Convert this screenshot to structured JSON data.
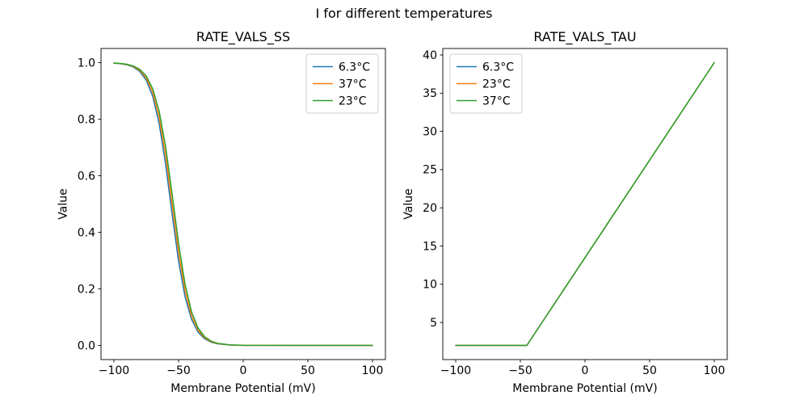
{
  "figure": {
    "title": "I for different temperatures",
    "background": "#ffffff"
  },
  "palette": {
    "C0": "#1f77b4",
    "C1": "#ff7f0e",
    "C2": "#2ca02c"
  },
  "chart_data": [
    {
      "type": "line",
      "title": "RATE_VALS_SS",
      "xlabel": "Membrane Potential (mV)",
      "ylabel": "Value",
      "xlim": [
        -110,
        110
      ],
      "ylim": [
        -0.05,
        1.05
      ],
      "grid": false,
      "legend_position": "top-right",
      "xticks": {
        "values": [
          -100,
          -50,
          0,
          50,
          100
        ],
        "labels": [
          "−100",
          "−50",
          "0",
          "50",
          "100"
        ]
      },
      "yticks": {
        "values": [
          0.0,
          0.2,
          0.4,
          0.6,
          0.8,
          1.0
        ],
        "labels": [
          "0.0",
          "0.2",
          "0.4",
          "0.6",
          "0.8",
          "1.0"
        ]
      },
      "x": [
        -100,
        -95,
        -90,
        -85,
        -80,
        -75,
        -70,
        -65,
        -60,
        -55,
        -50,
        -45,
        -40,
        -35,
        -30,
        -25,
        -20,
        -10,
        0,
        50,
        100
      ],
      "series": [
        {
          "name": "6.3°C",
          "color": "#1f77b4",
          "values": [
            0.9981,
            0.9962,
            0.9923,
            0.9844,
            0.9686,
            0.9379,
            0.8808,
            0.7834,
            0.6391,
            0.4643,
            0.2979,
            0.172,
            0.0923,
            0.0474,
            0.0238,
            0.0118,
            0.0058,
            0.0014,
            0.0003,
            0.0,
            0.0
          ]
        },
        {
          "name": "37°C",
          "color": "#ff7f0e",
          "values": [
            0.9984,
            0.9967,
            0.9933,
            0.9864,
            0.9727,
            0.9457,
            0.895,
            0.8067,
            0.6713,
            0.5,
            0.3287,
            0.1933,
            0.105,
            0.0543,
            0.0273,
            0.0136,
            0.0067,
            0.0016,
            0.0004,
            0.0,
            0.0
          ]
        },
        {
          "name": "23°C",
          "color": "#2ca02c",
          "values": [
            0.9986,
            0.9971,
            0.9942,
            0.9882,
            0.9762,
            0.9526,
            0.9077,
            0.828,
            0.7021,
            0.5357,
            0.3609,
            0.2166,
            0.1192,
            0.0621,
            0.0314,
            0.0156,
            0.0077,
            0.0019,
            0.0004,
            0.0,
            0.0
          ]
        }
      ]
    },
    {
      "type": "line",
      "title": "RATE_VALS_TAU",
      "xlabel": "Membrane Potential (mV)",
      "ylabel": "Value",
      "xlim": [
        -110,
        110
      ],
      "ylim": [
        0.15,
        40.85
      ],
      "grid": false,
      "legend_position": "top-left",
      "xticks": {
        "values": [
          -100,
          -50,
          0,
          50,
          100
        ],
        "labels": [
          "−100",
          "−50",
          "0",
          "50",
          "100"
        ]
      },
      "yticks": {
        "values": [
          5,
          10,
          15,
          20,
          25,
          30,
          35,
          40
        ],
        "labels": [
          "5",
          "10",
          "15",
          "20",
          "25",
          "30",
          "35",
          "40"
        ]
      },
      "x": [
        -100,
        -45,
        100
      ],
      "series": [
        {
          "name": "6.3°C",
          "color": "#1f77b4",
          "values": [
            2,
            2,
            39
          ]
        },
        {
          "name": "23°C",
          "color": "#ff7f0e",
          "values": [
            2,
            2,
            39
          ]
        },
        {
          "name": "37°C",
          "color": "#2ca02c",
          "values": [
            2,
            2,
            39
          ]
        }
      ]
    }
  ]
}
